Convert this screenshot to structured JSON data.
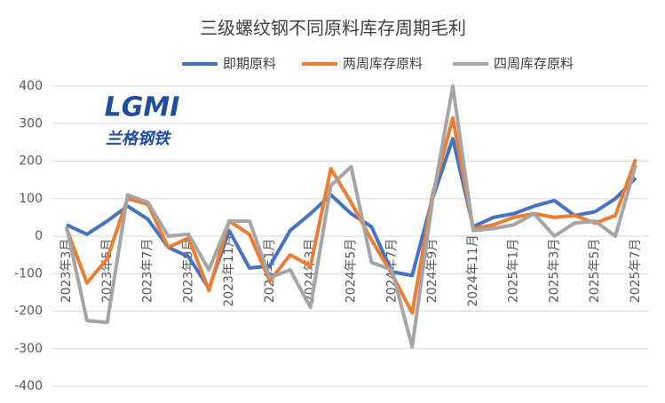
{
  "chart_data": {
    "type": "line",
    "title": "三级螺纹钢不同原料库存周期毛利",
    "logo": {
      "text": "LGMI",
      "subtext": "兰格钢铁"
    },
    "categories": [
      "2023年3月",
      null,
      "2023年5月",
      null,
      "2023年7月",
      null,
      "2023年9月",
      null,
      "2023年11月",
      null,
      "2024年1月",
      null,
      "2024年3月",
      null,
      "2024年5月",
      null,
      "2024年7月",
      null,
      "2024年9月",
      null,
      "2024年11月",
      null,
      "2025年1月",
      null,
      "2025年3月",
      null,
      "2025年5月",
      null,
      "2025年7月"
    ],
    "series": [
      {
        "name": "即期原料",
        "color": "#4472c4",
        "values": [
          30,
          5,
          40,
          80,
          45,
          -30,
          -55,
          -140,
          15,
          -85,
          -80,
          15,
          60,
          110,
          60,
          25,
          -95,
          -105,
          100,
          260,
          25,
          50,
          60,
          80,
          95,
          55,
          65,
          100,
          155
        ]
      },
      {
        "name": "两周库存原料",
        "color": "#ed7d31",
        "values": [
          20,
          -125,
          -60,
          100,
          85,
          -30,
          -5,
          -145,
          40,
          5,
          -120,
          -50,
          -80,
          180,
          90,
          -10,
          -100,
          -205,
          110,
          315,
          20,
          30,
          50,
          60,
          50,
          55,
          35,
          55,
          205
        ]
      },
      {
        "name": "四周库存原料",
        "color": "#a5a5a5",
        "values": [
          25,
          -225,
          -230,
          110,
          90,
          0,
          5,
          -90,
          40,
          40,
          -110,
          -90,
          -190,
          135,
          185,
          -70,
          -90,
          -295,
          95,
          400,
          15,
          20,
          30,
          60,
          0,
          35,
          40,
          0,
          190
        ]
      }
    ],
    "ylim": [
      -400,
      400
    ],
    "yticks": [
      -400,
      -300,
      -200,
      -100,
      0,
      100,
      200,
      300,
      400
    ],
    "grid": true
  }
}
